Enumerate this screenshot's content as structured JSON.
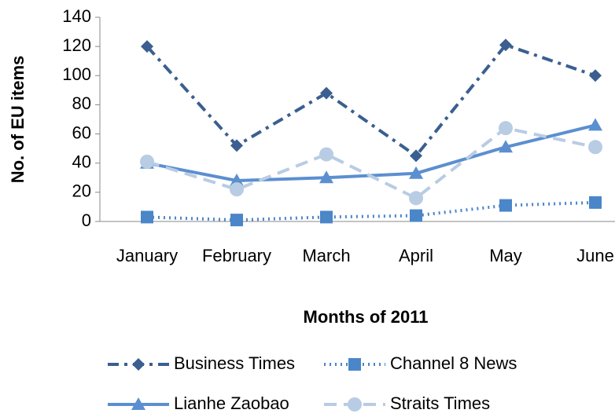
{
  "chart_data": {
    "type": "line",
    "y_label": "No. of EU items",
    "x_label": "Months of 2011",
    "categories": [
      "January",
      "February",
      "March",
      "April",
      "May",
      "June"
    ],
    "series": [
      {
        "name": "Business Times",
        "color": "#3a5f90",
        "dash": "14 7 4 7",
        "marker": "diamond",
        "values": [
          120,
          52,
          88,
          45,
          121,
          100
        ]
      },
      {
        "name": "Channel 8 News",
        "color": "#4a86c8",
        "dash": "2 5",
        "marker": "square",
        "values": [
          3,
          1,
          3,
          4,
          11,
          13
        ]
      },
      {
        "name": "Lianhe Zaobao",
        "color": "#5b8fd0",
        "dash": "none",
        "marker": "triangle",
        "values": [
          40,
          28,
          30,
          33,
          51,
          66
        ]
      },
      {
        "name": "Straits Times",
        "color": "#b8cce4",
        "dash": "16 9",
        "marker": "circle",
        "values": [
          41,
          22,
          46,
          16,
          64,
          51
        ]
      }
    ],
    "ylim": [
      0,
      140
    ],
    "yticks": [
      0,
      20,
      40,
      60,
      80,
      100,
      120,
      140
    ],
    "grid": false
  }
}
